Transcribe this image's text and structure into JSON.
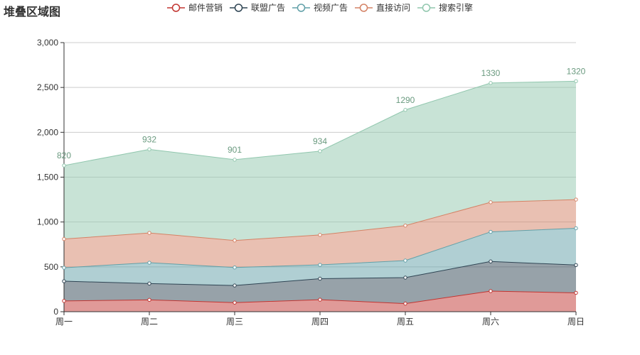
{
  "chart_data": {
    "type": "area",
    "title": "堆叠区域图",
    "categories": [
      "周一",
      "周二",
      "周三",
      "周四",
      "周五",
      "周六",
      "周日"
    ],
    "ylim": [
      0,
      3000
    ],
    "yticks": [
      0,
      500,
      1000,
      1500,
      2000,
      2500,
      3000
    ],
    "ytick_labels": [
      "0",
      "500",
      "1,000",
      "1,500",
      "2,000",
      "2,500",
      "3,000"
    ],
    "grid": true,
    "legend_position": "top-center",
    "stacked": true,
    "top_series_labels": [
      "820",
      "932",
      "901",
      "934",
      "1290",
      "1330",
      "1320"
    ],
    "series": [
      {
        "name": "邮件营销",
        "values": [
          120,
          132,
          101,
          134,
          90,
          230,
          210
        ],
        "color": "#c23531"
      },
      {
        "name": "联盟广告",
        "values": [
          220,
          182,
          191,
          234,
          290,
          330,
          310
        ],
        "color": "#2f4554"
      },
      {
        "name": "视频广告",
        "values": [
          150,
          232,
          201,
          154,
          190,
          330,
          410
        ],
        "color": "#61a0a8"
      },
      {
        "name": "直接访问",
        "values": [
          320,
          332,
          301,
          334,
          390,
          330,
          320
        ],
        "color": "#d48265"
      },
      {
        "name": "搜索引擎",
        "values": [
          820,
          932,
          901,
          934,
          1290,
          1330,
          1320
        ],
        "color": "#91c7ae"
      }
    ]
  }
}
